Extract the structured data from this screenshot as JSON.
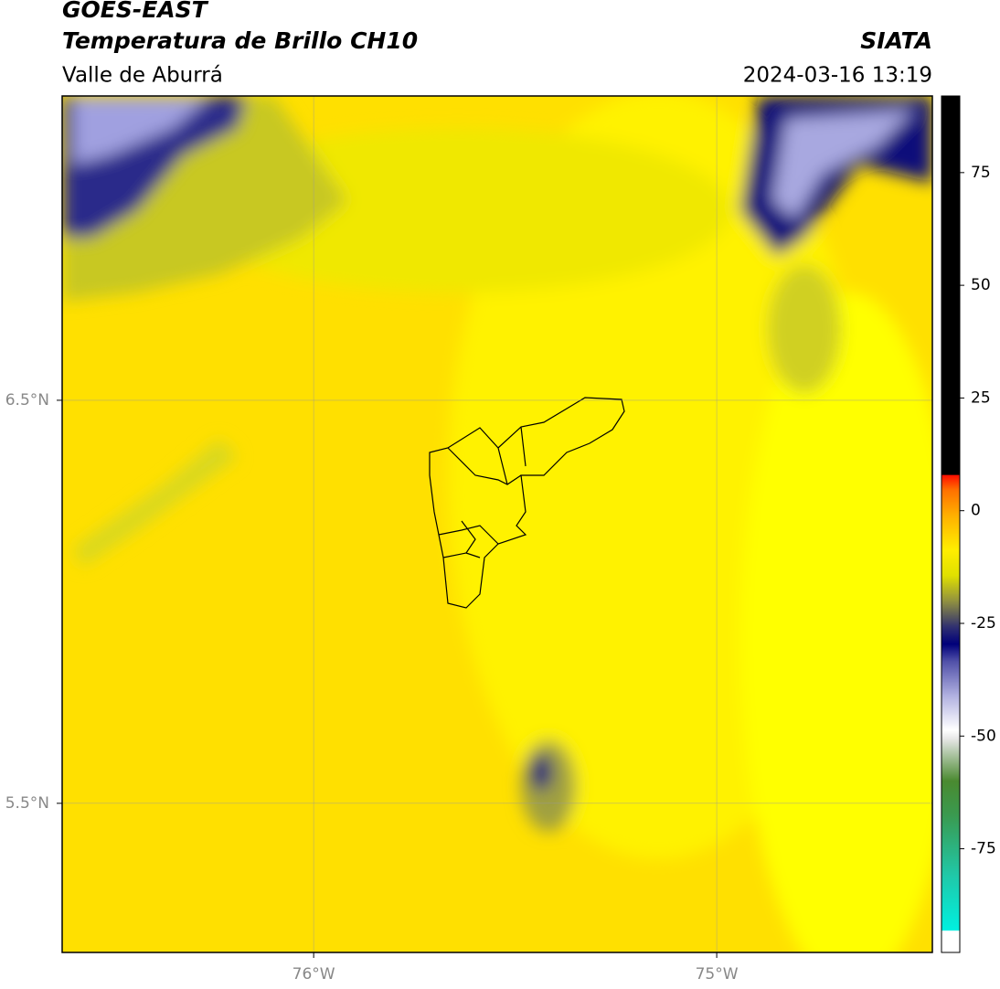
{
  "header": {
    "title": "GOES-EAST",
    "subtitle": "Temperatura de Brillo CH10",
    "region": "Valle de Aburrá",
    "source": "SIATA",
    "datetime": "2024-03-16 13:19"
  },
  "map": {
    "lonlim": [
      -76.624,
      -74.465
    ],
    "latlim": [
      5.13,
      7.255
    ],
    "lonticks": [
      {
        "value": -76,
        "label": "76°W"
      },
      {
        "value": -75,
        "label": "75°W"
      }
    ],
    "latticks": [
      {
        "value": 6.5,
        "label": "6.5°N"
      },
      {
        "value": 5.5,
        "label": "5.5°N"
      }
    ],
    "grid": true
  },
  "colorbar": {
    "lim": [
      -98,
      92
    ],
    "ticks": [
      75,
      50,
      25,
      0,
      -25,
      -50,
      -75
    ]
  }
}
